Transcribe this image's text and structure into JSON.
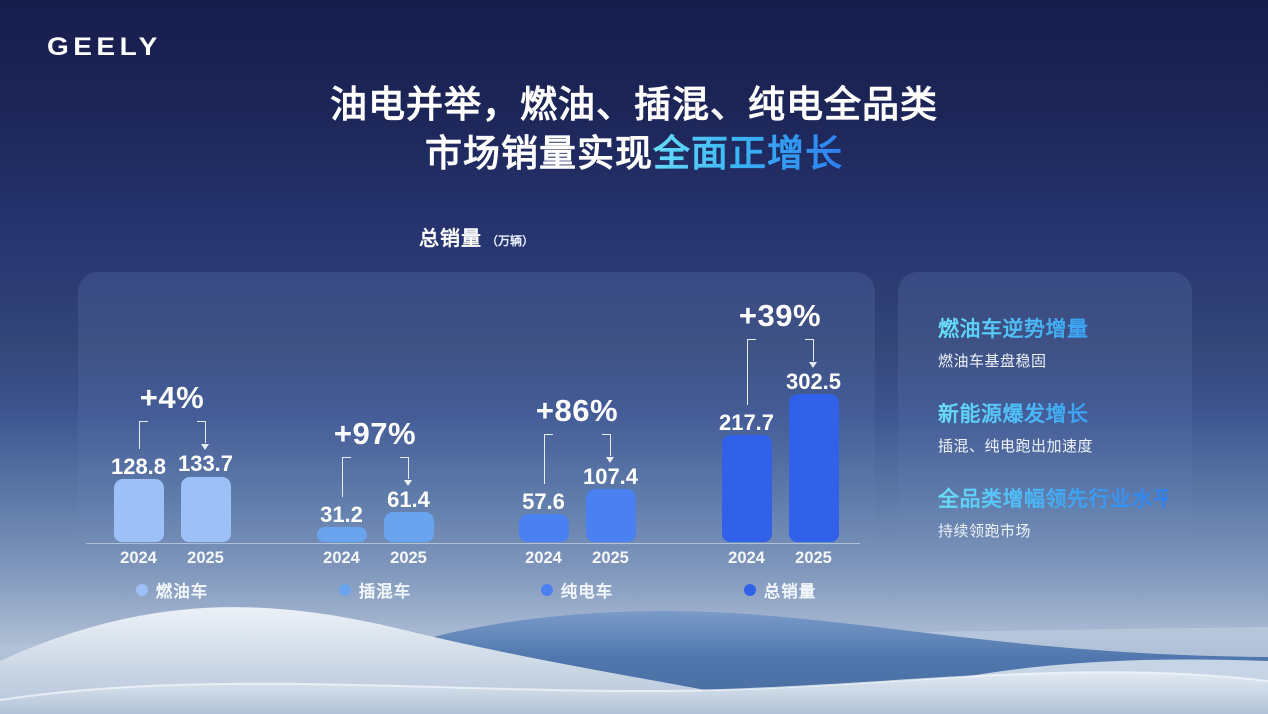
{
  "logo": "GEELY",
  "title": {
    "line1": "油电并举，燃油、插混、纯电全品类",
    "line2_prefix": "市场销量实现",
    "line2_highlight": "全面正增长"
  },
  "chart_label": {
    "text": "总销量",
    "unit": "（万辆）"
  },
  "chart_data": {
    "type": "bar",
    "title": "总销量（万辆）",
    "ylabel": "万辆",
    "ylim": [
      0,
      310
    ],
    "grid": false,
    "legend_position": "bottom",
    "years": [
      "2024",
      "2025"
    ],
    "groups": [
      {
        "name": "燃油车",
        "percent": "+4%",
        "values": [
          128.8,
          133.7
        ],
        "color": "#9dc1f7"
      },
      {
        "name": "插混车",
        "percent": "+97%",
        "values": [
          31.2,
          61.4
        ],
        "color": "#6ba4ee"
      },
      {
        "name": "纯电车",
        "percent": "+86%",
        "values": [
          57.6,
          107.4
        ],
        "color": "#4a80ef"
      },
      {
        "name": "总销量",
        "percent": "+39%",
        "values": [
          217.7,
          302.5
        ],
        "color": "#3161e9"
      }
    ]
  },
  "insights": [
    {
      "heading": "燃油车逆势增量",
      "detail": "燃油车基盘稳固"
    },
    {
      "heading": "新能源爆发增长",
      "detail": "插混、纯电跑出加速度"
    },
    {
      "heading": "全品类增幅领先行业水平",
      "detail": "持续领跑市场"
    }
  ],
  "colors": {
    "highlight_start": "#67ddfa",
    "highlight_end": "#2e7ff0",
    "background_top": "#171d4c",
    "background_bottom": "#c9d5e3",
    "axis_line": "rgba(255,255,255,0.45)"
  }
}
